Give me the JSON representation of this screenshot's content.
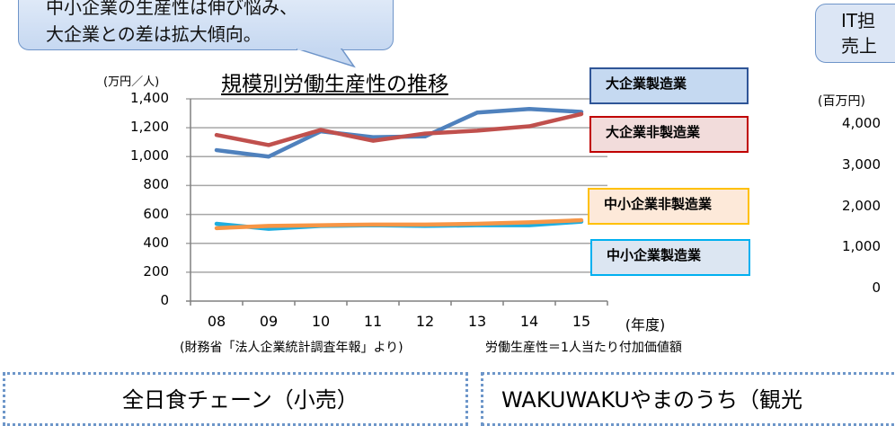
{
  "callout_left": {
    "line1": "中小企業の生産性は伸び悩み、",
    "line2": "大企業との差は拡大傾向。"
  },
  "callout_right": {
    "line1": "IT担",
    "line2": "売上"
  },
  "right_axis": {
    "unit": "(百万円)",
    "ticks": [
      "4,000",
      "3,000",
      "2,000",
      "1,000",
      "0"
    ]
  },
  "footer": {
    "source": "(財務省「法人企業統計調査年報」より)",
    "definition": "労働生産性＝1人当たり付加価値額"
  },
  "bottom_boxes": {
    "left_title": "全日食チェーン（小売）",
    "right_title": "WAKUWAKUやまのうち（観光"
  },
  "colors": {
    "large_mfg": "#4f81bd",
    "large_nonmfg": "#c0504d",
    "sme_nonmfg": "#f79646",
    "sme_mfg": "#1faee0",
    "grid": "#a6a6a6",
    "axis": "#808080"
  },
  "chart_data": {
    "type": "line",
    "title": "規模別労働生産性の推移",
    "xlabel": "(年度)",
    "ylabel": "(万円／人)",
    "categories": [
      "08",
      "09",
      "10",
      "11",
      "12",
      "13",
      "14",
      "15"
    ],
    "ylim": [
      0,
      1400
    ],
    "yticks": [
      "1,400",
      "1,200",
      "1,000",
      "800",
      "600",
      "400",
      "200",
      "0"
    ],
    "grid": true,
    "legend_position": "right",
    "series": [
      {
        "name": "大企業製造業",
        "values": [
          1045,
          1000,
          1175,
          1135,
          1140,
          1305,
          1330,
          1310
        ]
      },
      {
        "name": "大企業非製造業",
        "values": [
          1150,
          1080,
          1185,
          1110,
          1160,
          1180,
          1210,
          1295
        ]
      },
      {
        "name": "中小企業非製造業",
        "values": [
          505,
          520,
          525,
          530,
          530,
          535,
          545,
          560
        ]
      },
      {
        "name": "中小企業製造業",
        "values": [
          535,
          500,
          520,
          525,
          520,
          525,
          525,
          550
        ]
      }
    ]
  }
}
